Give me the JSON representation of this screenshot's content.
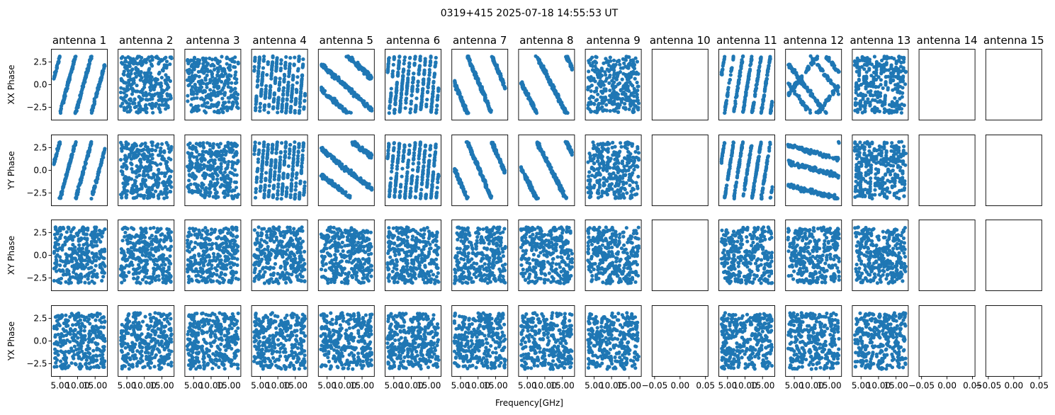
{
  "figure": {
    "title": "0319+415 2025-07-18 14:55:53 UT",
    "xlabel": "Frequency[GHz]"
  },
  "chart_data": {
    "type": "scatter",
    "title": "0319+415 2025-07-18 14:55:53 UT",
    "xlabel": "Frequency[GHz]",
    "columns": [
      "antenna 1",
      "antenna 2",
      "antenna 3",
      "antenna 4",
      "antenna 5",
      "antenna 6",
      "antenna 7",
      "antenna 8",
      "antenna 9",
      "antenna 10",
      "antenna 11",
      "antenna 12",
      "antenna 13",
      "antenna 14",
      "antenna 15"
    ],
    "rows": [
      "XX Phase",
      "YY Phase",
      "XY Phase",
      "YX Phase"
    ],
    "ylim": [
      -3.9,
      3.9
    ],
    "xlim": [
      2.5,
      18.5
    ],
    "xlim_empty": [
      -0.055,
      0.055
    ],
    "yticks": [
      -2.5,
      0.0,
      2.5
    ],
    "ytick_labels": [
      "−2.5",
      "0.0",
      "2.5"
    ],
    "xticks": [
      5.0,
      10.0,
      15.0
    ],
    "xtick_labels": [
      "5.00",
      "10.00",
      "15.00"
    ],
    "xticks_empty": [
      -0.05,
      0.0,
      0.05
    ],
    "xtick_labels_empty": [
      "−0.05",
      "0.00",
      "0.05"
    ],
    "empty_antennas": [
      10,
      14,
      15
    ],
    "grid": false,
    "marker_color": "#1f77b4",
    "phase_patterns": {
      "XX Phase": [
        {
          "antenna": 1,
          "pattern": "wrapped slope",
          "slope": 1.4
        },
        {
          "antenna": 2,
          "pattern": "noise"
        },
        {
          "antenna": 3,
          "pattern": "noise"
        },
        {
          "antenna": 4,
          "pattern": "wrapped slope",
          "slope": 5.0
        },
        {
          "antenna": 5,
          "pattern": "two bands",
          "slope": -0.35
        },
        {
          "antenna": 6,
          "pattern": "wrapped slope",
          "slope": 4.2
        },
        {
          "antenna": 7,
          "pattern": "wrapped slope",
          "slope": -0.9
        },
        {
          "antenna": 8,
          "pattern": "wrapped slope",
          "slope": -0.75
        },
        {
          "antenna": 9,
          "pattern": "mostly noise"
        },
        {
          "antenna": 11,
          "pattern": "wrapped slope",
          "slope": 2.4
        },
        {
          "antenna": 12,
          "pattern": "crossed bands",
          "slope": -0.5
        },
        {
          "antenna": 13,
          "pattern": "wrapped slope",
          "slope": 9.0
        }
      ],
      "YY Phase": [
        {
          "antenna": 1,
          "pattern": "wrapped slope",
          "slope": 1.4
        },
        {
          "antenna": 2,
          "pattern": "noise"
        },
        {
          "antenna": 3,
          "pattern": "noise"
        },
        {
          "antenna": 4,
          "pattern": "wrapped slope",
          "slope": 5.0
        },
        {
          "antenna": 5,
          "pattern": "two bands",
          "slope": -0.3
        },
        {
          "antenna": 6,
          "pattern": "wrapped slope",
          "slope": 4.2
        },
        {
          "antenna": 7,
          "pattern": "wrapped slope",
          "slope": -0.9
        },
        {
          "antenna": 8,
          "pattern": "wrapped slope",
          "slope": -0.75
        },
        {
          "antenna": 9,
          "pattern": "noise"
        },
        {
          "antenna": 11,
          "pattern": "wrapped slope",
          "slope": 2.4
        },
        {
          "antenna": 12,
          "pattern": "three bands",
          "slope": -0.1
        },
        {
          "antenna": 13,
          "pattern": "wrapped slope",
          "slope": 9.0
        }
      ],
      "XY Phase": "noise",
      "YX Phase": "noise"
    }
  }
}
